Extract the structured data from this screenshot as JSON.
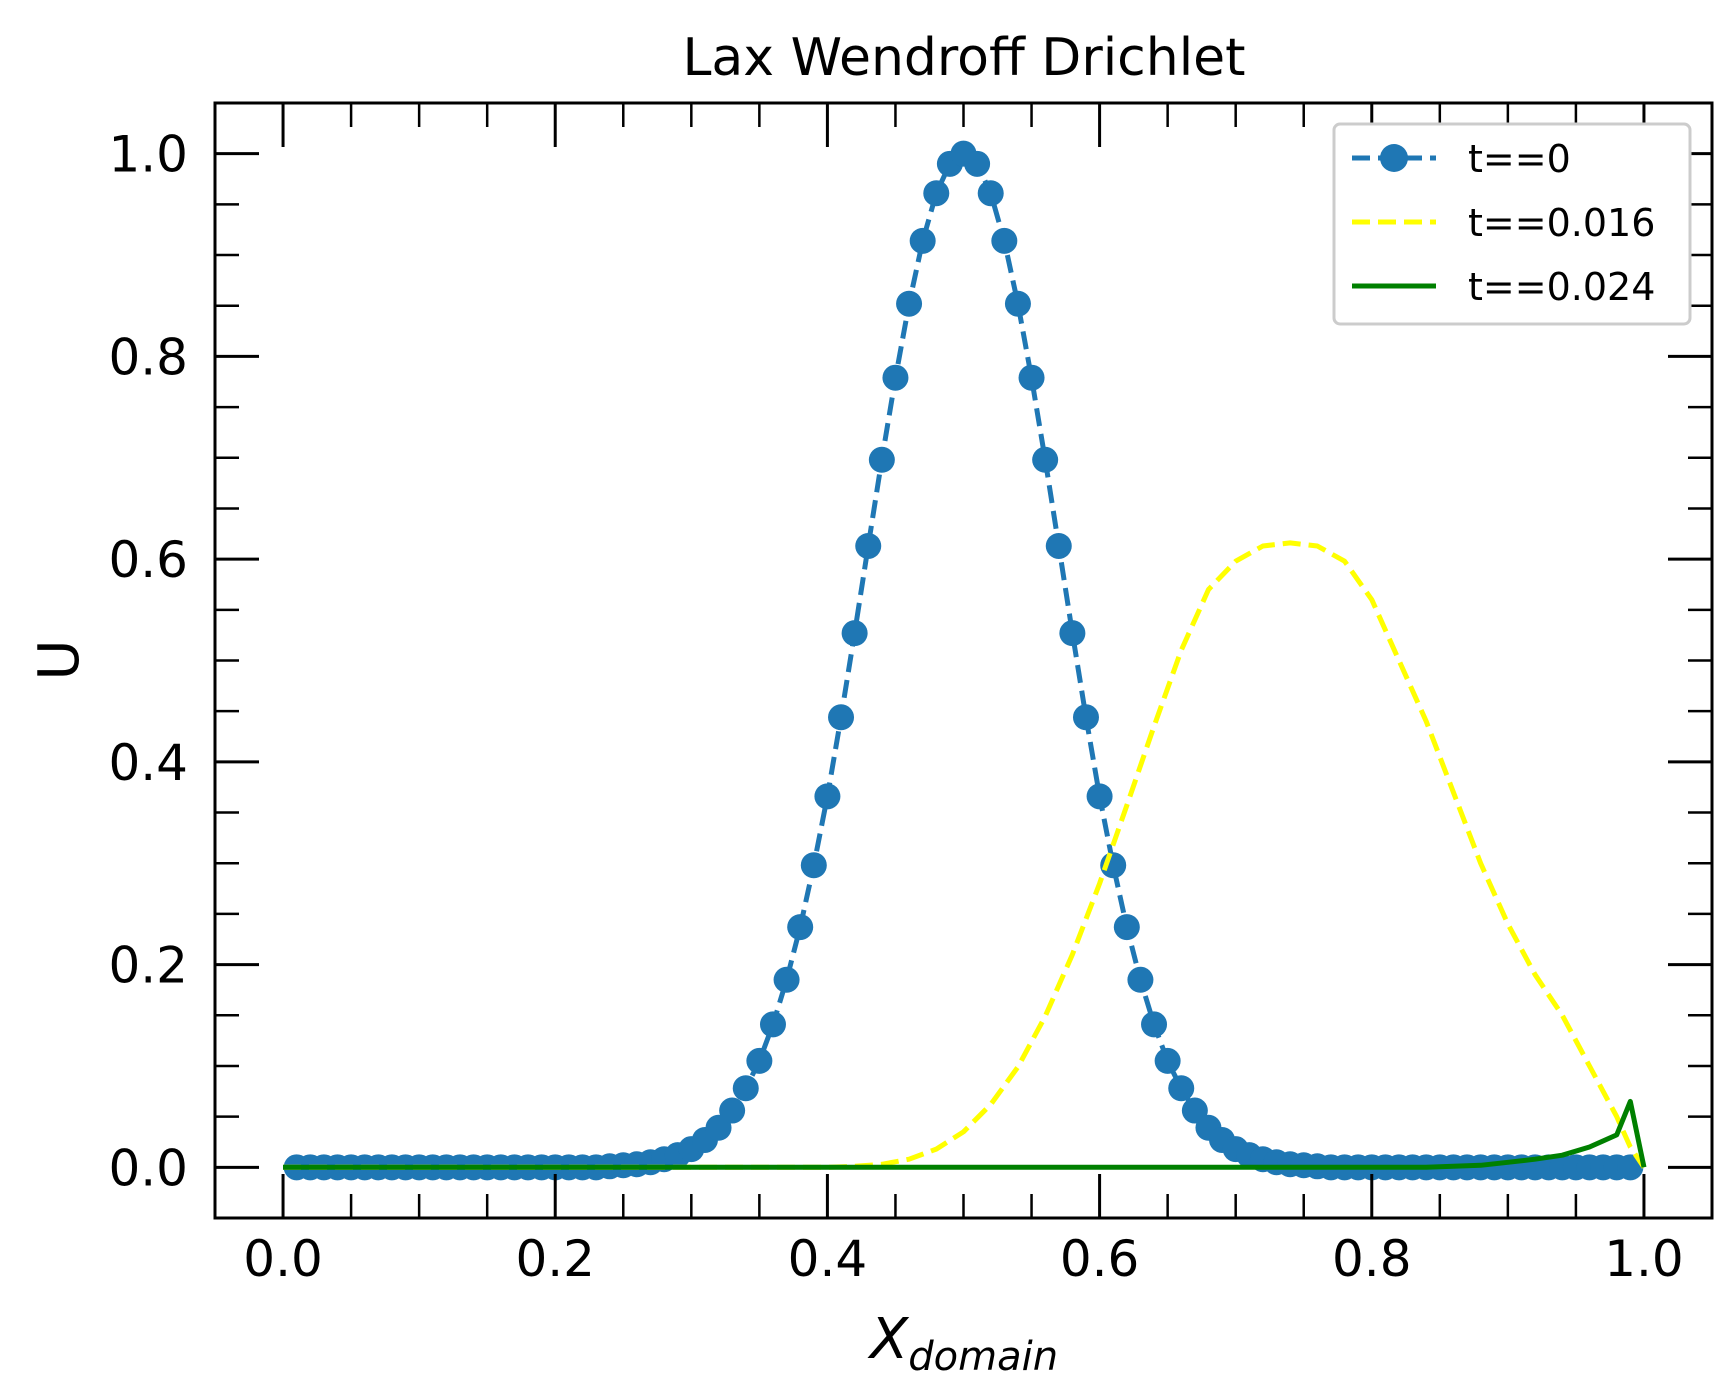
{
  "chart_data": {
    "type": "line",
    "title": "Lax Wendroff Drichlet",
    "xlabel_base": "X",
    "xlabel_sub": "domain",
    "ylabel": "U",
    "xlim": [
      -0.05,
      1.05
    ],
    "ylim": [
      -0.05,
      1.05
    ],
    "xticks": [
      0.0,
      0.2,
      0.4,
      0.6,
      0.8,
      1.0
    ],
    "xtick_labels": [
      "0.0",
      "0.2",
      "0.4",
      "0.6",
      "0.8",
      "1.0"
    ],
    "yticks": [
      0.0,
      0.2,
      0.4,
      0.6,
      0.8,
      1.0
    ],
    "ytick_labels": [
      "0.0",
      "0.2",
      "0.4",
      "0.6",
      "0.8",
      "1.0"
    ],
    "x_minor_step": 0.05,
    "y_minor_step": 0.05,
    "grid": false,
    "legend_position": "top-right",
    "series": [
      {
        "name": "t==0",
        "color": "#1f77b4",
        "style": "dashed-markers",
        "x": [
          0.01,
          0.02,
          0.03,
          0.04,
          0.05,
          0.06,
          0.07,
          0.08,
          0.09,
          0.1,
          0.11,
          0.12,
          0.13,
          0.14,
          0.15,
          0.16,
          0.17,
          0.18,
          0.19,
          0.2,
          0.21,
          0.22,
          0.23,
          0.24,
          0.25,
          0.26,
          0.27,
          0.28,
          0.29,
          0.3,
          0.31,
          0.32,
          0.33,
          0.34,
          0.35,
          0.36,
          0.37,
          0.38,
          0.39,
          0.4,
          0.41,
          0.42,
          0.43,
          0.44,
          0.45,
          0.46,
          0.47,
          0.48,
          0.49,
          0.5,
          0.51,
          0.52,
          0.53,
          0.54,
          0.55,
          0.56,
          0.57,
          0.58,
          0.59,
          0.6,
          0.61,
          0.62,
          0.63,
          0.64,
          0.65,
          0.66,
          0.67,
          0.68,
          0.69,
          0.7,
          0.71,
          0.72,
          0.73,
          0.74,
          0.75,
          0.76,
          0.77,
          0.78,
          0.79,
          0.8,
          0.81,
          0.82,
          0.83,
          0.84,
          0.85,
          0.86,
          0.87,
          0.88,
          0.89,
          0.9,
          0.91,
          0.92,
          0.93,
          0.94,
          0.95,
          0.96,
          0.97,
          0.98,
          0.99
        ],
        "y": [
          0.0,
          0.0,
          0.0,
          0.0,
          0.0,
          0.0,
          0.0,
          0.0,
          0.0,
          0.0,
          0.0,
          0.0,
          0.0,
          0.0,
          0.0,
          0.0,
          0.0,
          0.0,
          0.0,
          0.0,
          0.0,
          0.0,
          0.0,
          0.001,
          0.002,
          0.003,
          0.005,
          0.008,
          0.012,
          0.018,
          0.027,
          0.039,
          0.056,
          0.078,
          0.105,
          0.141,
          0.185,
          0.237,
          0.298,
          0.366,
          0.444,
          0.527,
          0.613,
          0.698,
          0.779,
          0.852,
          0.914,
          0.961,
          0.99,
          1.0,
          0.99,
          0.961,
          0.914,
          0.852,
          0.779,
          0.698,
          0.613,
          0.527,
          0.444,
          0.366,
          0.298,
          0.237,
          0.185,
          0.141,
          0.105,
          0.078,
          0.056,
          0.039,
          0.027,
          0.018,
          0.012,
          0.008,
          0.005,
          0.003,
          0.002,
          0.001,
          0.0,
          0.0,
          0.0,
          0.0,
          0.0,
          0.0,
          0.0,
          0.0,
          0.0,
          0.0,
          0.0,
          0.0,
          0.0,
          0.0,
          0.0,
          0.0,
          0.0,
          0.0,
          0.0,
          0.0,
          0.0,
          0.0,
          0.0
        ]
      },
      {
        "name": "t==0.016",
        "color": "#ffff00",
        "style": "dashed",
        "x": [
          0.0,
          0.4,
          0.42,
          0.44,
          0.46,
          0.48,
          0.5,
          0.52,
          0.54,
          0.56,
          0.58,
          0.6,
          0.62,
          0.64,
          0.66,
          0.68,
          0.7,
          0.72,
          0.74,
          0.76,
          0.78,
          0.8,
          0.82,
          0.84,
          0.86,
          0.88,
          0.9,
          0.92,
          0.94,
          0.96,
          0.98,
          0.99,
          1.0
        ],
        "y": [
          0.0,
          0.0,
          0.001,
          0.003,
          0.008,
          0.018,
          0.035,
          0.062,
          0.099,
          0.149,
          0.21,
          0.28,
          0.357,
          0.435,
          0.51,
          0.57,
          0.598,
          0.613,
          0.616,
          0.613,
          0.598,
          0.56,
          0.5,
          0.44,
          0.37,
          0.3,
          0.24,
          0.19,
          0.15,
          0.1,
          0.05,
          0.02,
          0.0
        ]
      },
      {
        "name": "t==0.024",
        "color": "#008000",
        "style": "solid",
        "x": [
          0.0,
          0.8,
          0.84,
          0.88,
          0.9,
          0.92,
          0.94,
          0.96,
          0.98,
          0.99,
          1.0
        ],
        "y": [
          0.0,
          0.0,
          0.0,
          0.002,
          0.005,
          0.008,
          0.012,
          0.02,
          0.032,
          0.065,
          0.0
        ]
      }
    ]
  }
}
